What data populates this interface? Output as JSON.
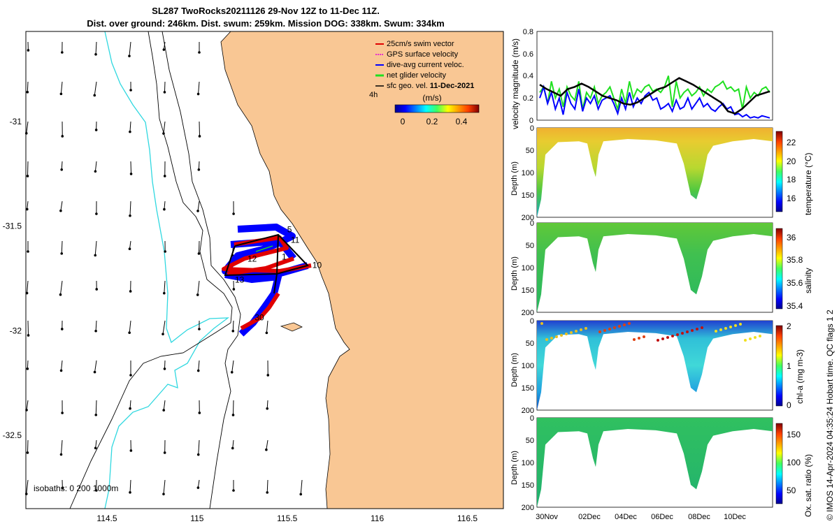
{
  "title_line1": "SL287 TwoRocks20211126 29-Nov 12Z to 11-Dec 11Z.",
  "title_line2": "Dist. over ground: 246km. Dist. swum: 259km. Mission DOG: 338km. Swum: 334km",
  "footer": "© IMOS 14-Apr-2024 04:35:24 Hobart time. QC flags 1  2",
  "colors": {
    "land": "#f9c794",
    "swim": "#e00000",
    "gps": "#e000e0",
    "dive_avg": "#0000ff",
    "net": "#20e020",
    "geo": "#000000",
    "isobath_shallow": "#30d8e0"
  },
  "chart_data": [
    {
      "type": "map",
      "name": "glider-track-map",
      "xlim": [
        114.05,
        116.7
      ],
      "ylim": [
        -32.85,
        -30.57
      ],
      "xticks": [
        114.5,
        115,
        115.5,
        116,
        116.5
      ],
      "xtick_labels": [
        "114.5",
        "115",
        "115.5",
        "116",
        "116.5"
      ],
      "yticks": [
        -31,
        -31.5,
        -32,
        -32.5
      ],
      "ytick_labels": [
        "-31",
        "-31.5",
        "-32",
        "-32.5"
      ],
      "legend": [
        "25cm/s swim vector",
        "GPS surface velocity",
        "dive-avg current veloc.",
        "net glider velocity",
        "sfc geo. vel. 11-Dec-2021"
      ],
      "legend_date_prefix": "sfc geo. vel. ",
      "legend_date": "11-Dec-2021",
      "age_label": "4h",
      "colorbar_title": "(m/s)",
      "colorbar_ticks": [
        "0",
        "0.2",
        "0.4"
      ],
      "isobath_label": "isobaths: 0   200  1000m",
      "waypoint_labels": [
        {
          "text": "5",
          "lon": 115.5,
          "lat": -31.53
        },
        {
          "text": "11",
          "lon": 115.52,
          "lat": -31.58
        },
        {
          "text": "1",
          "lon": 115.47,
          "lat": -31.66
        },
        {
          "text": "12",
          "lon": 115.28,
          "lat": -31.67
        },
        {
          "text": "10",
          "lon": 115.64,
          "lat": -31.7
        },
        {
          "text": "13",
          "lon": 115.21,
          "lat": -31.77
        },
        {
          "text": "30",
          "lon": 115.32,
          "lat": -31.95
        }
      ]
    },
    {
      "type": "line",
      "name": "velocity-magnitude",
      "ylabel": "velocity magnitude (m/s)",
      "ylim": [
        0,
        0.8
      ],
      "yticks": [
        "0",
        "0.2",
        "0.4",
        "0.6",
        "0.8"
      ],
      "series": [
        {
          "name": "net glider velocity",
          "color": "#20e020",
          "values": [
            0.25,
            0.3,
            0.15,
            0.35,
            0.2,
            0.28,
            0.12,
            0.3,
            0.22,
            0.18,
            0.35,
            0.1,
            0.25,
            0.2,
            0.3,
            0.15,
            0.22,
            0.25,
            0.3,
            0.2,
            0.1,
            0.28,
            0.15,
            0.35,
            0.2,
            0.28,
            0.25,
            0.3,
            0.32,
            0.26,
            0.28,
            0.25,
            0.3,
            0.4,
            0.12,
            0.35,
            0.2,
            0.25,
            0.28,
            0.22,
            0.25,
            0.3,
            0.22,
            0.28,
            0.25,
            0.3,
            0.32,
            0.35,
            0.28,
            0.3,
            0.26,
            0.28,
            0.1,
            0.3,
            0.2,
            0.25,
            0.22,
            0.28,
            0.3,
            0.25
          ]
        },
        {
          "name": "dive-avg current",
          "color": "#0000ff",
          "values": [
            0.2,
            0.3,
            0.15,
            0.25,
            0.1,
            0.2,
            0.05,
            0.25,
            0.15,
            0.1,
            0.28,
            0.08,
            0.2,
            0.15,
            0.22,
            0.1,
            0.18,
            0.2,
            0.22,
            0.15,
            0.06,
            0.2,
            0.1,
            0.25,
            0.12,
            0.2,
            0.15,
            0.22,
            0.25,
            0.18,
            0.2,
            0.1,
            0.12,
            0.15,
            0.08,
            0.18,
            0.1,
            0.12,
            0.2,
            0.1,
            0.15,
            0.2,
            0.12,
            0.15,
            0.1,
            0.08,
            0.12,
            0.15,
            0.1,
            0.12,
            0.05,
            0.06,
            0.03,
            0.05,
            0.02,
            0.03,
            0.02,
            0.04,
            0.03,
            0.02
          ]
        },
        {
          "name": "surface geostrophic",
          "color": "#000000",
          "values": [
            0.32,
            0.28,
            0.25,
            0.22,
            0.28,
            0.3,
            0.33,
            0.3,
            0.26,
            0.22,
            0.2,
            0.18,
            0.15,
            0.14,
            0.16,
            0.2,
            0.24,
            0.28,
            0.3,
            0.34,
            0.38,
            0.35,
            0.32,
            0.28,
            0.24,
            0.2,
            0.16,
            0.08,
            0.06,
            0.1,
            0.16,
            0.22,
            0.24,
            0.26
          ]
        }
      ]
    },
    {
      "type": "heatmap",
      "name": "temperature-section",
      "ylabel": "Depth (m)",
      "colorbar_label": "temperature (°C)",
      "yticks": [
        "0",
        "50",
        "100",
        "150",
        "200"
      ],
      "colorbar_ticks": [
        "22",
        "20",
        "18",
        "16"
      ],
      "range": [
        15,
        23
      ]
    },
    {
      "type": "heatmap",
      "name": "salinity-section",
      "ylabel": "Depth (m)",
      "colorbar_label": "salinity",
      "yticks": [
        "0",
        "50",
        "100",
        "150",
        "200"
      ],
      "colorbar_ticks": [
        "36",
        "35.8",
        "35.6",
        "35.4"
      ],
      "range": [
        35.3,
        36.05
      ]
    },
    {
      "type": "heatmap",
      "name": "chlorophyll-section",
      "ylabel": "Depth (m)",
      "colorbar_label": "chl-a (mg m-3)",
      "yticks": [
        "0",
        "50",
        "100",
        "150",
        "200"
      ],
      "colorbar_ticks": [
        "2",
        "1",
        "0"
      ],
      "range": [
        0,
        2
      ]
    },
    {
      "type": "heatmap",
      "name": "oxygen-section",
      "ylabel": "Depth (m)",
      "colorbar_label": "Ox. sat. ratio (%)",
      "yticks": [
        "0",
        "50",
        "100",
        "150",
        "200"
      ],
      "colorbar_ticks": [
        "150",
        "100",
        "50"
      ],
      "range": [
        25,
        170
      ]
    }
  ],
  "time_axis": {
    "labels": [
      "30Nov",
      "02Dec",
      "04Dec",
      "06Dec",
      "08Dec",
      "10Dec"
    ],
    "start": "29-Nov 12Z",
    "end": "11-Dec 11Z"
  }
}
